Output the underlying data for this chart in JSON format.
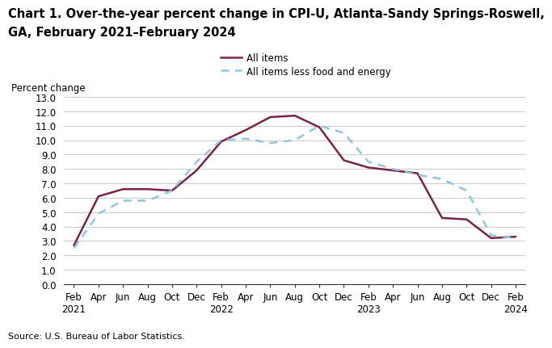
{
  "title_line1": "Chart 1. Over-the-year percent change in CPI-U, Atlanta-Sandy Springs-Roswell,",
  "title_line2": "GA, February 2021–February 2024",
  "ylabel": "Percent change",
  "source": "Source: U.S. Bureau of Labor Statistics.",
  "legend_all_items": "All items",
  "legend_core": "All items less food and energy",
  "all_items_color": "#7B2346",
  "core_color": "#92C5DE",
  "ylim": [
    0.0,
    13.0
  ],
  "ytick_vals": [
    0.0,
    1.0,
    2.0,
    3.0,
    4.0,
    5.0,
    6.0,
    7.0,
    8.0,
    9.0,
    10.0,
    11.0,
    12.0,
    13.0
  ],
  "x_tick_labels": [
    "Feb\n2021",
    "Apr",
    "Jun",
    "Aug",
    "Oct",
    "Dec",
    "Feb\n2022",
    "Apr",
    "Jun",
    "Aug",
    "Oct",
    "Dec",
    "Feb\n2023",
    "Apr",
    "Jun",
    "Aug",
    "Oct",
    "Dec",
    "Feb\n2024"
  ],
  "all_items": [
    2.7,
    6.1,
    6.6,
    6.6,
    6.5,
    7.9,
    9.9,
    10.7,
    11.6,
    11.7,
    10.9,
    8.6,
    8.1,
    7.9,
    7.7,
    4.6,
    4.5,
    3.2,
    3.3
  ],
  "core": [
    2.5,
    4.9,
    5.8,
    5.8,
    6.5,
    8.5,
    10.0,
    10.1,
    9.8,
    10.0,
    11.0,
    10.5,
    8.5,
    8.0,
    7.6,
    7.3,
    6.5,
    3.4,
    3.2
  ],
  "title_fontsize": 10.5,
  "tick_fontsize": 8.5,
  "ylabel_fontsize": 8.5,
  "source_fontsize": 8.0,
  "legend_fontsize": 8.5,
  "line_width": 1.8,
  "grid_color": "#cccccc",
  "bottom_spine_color": "#333333"
}
